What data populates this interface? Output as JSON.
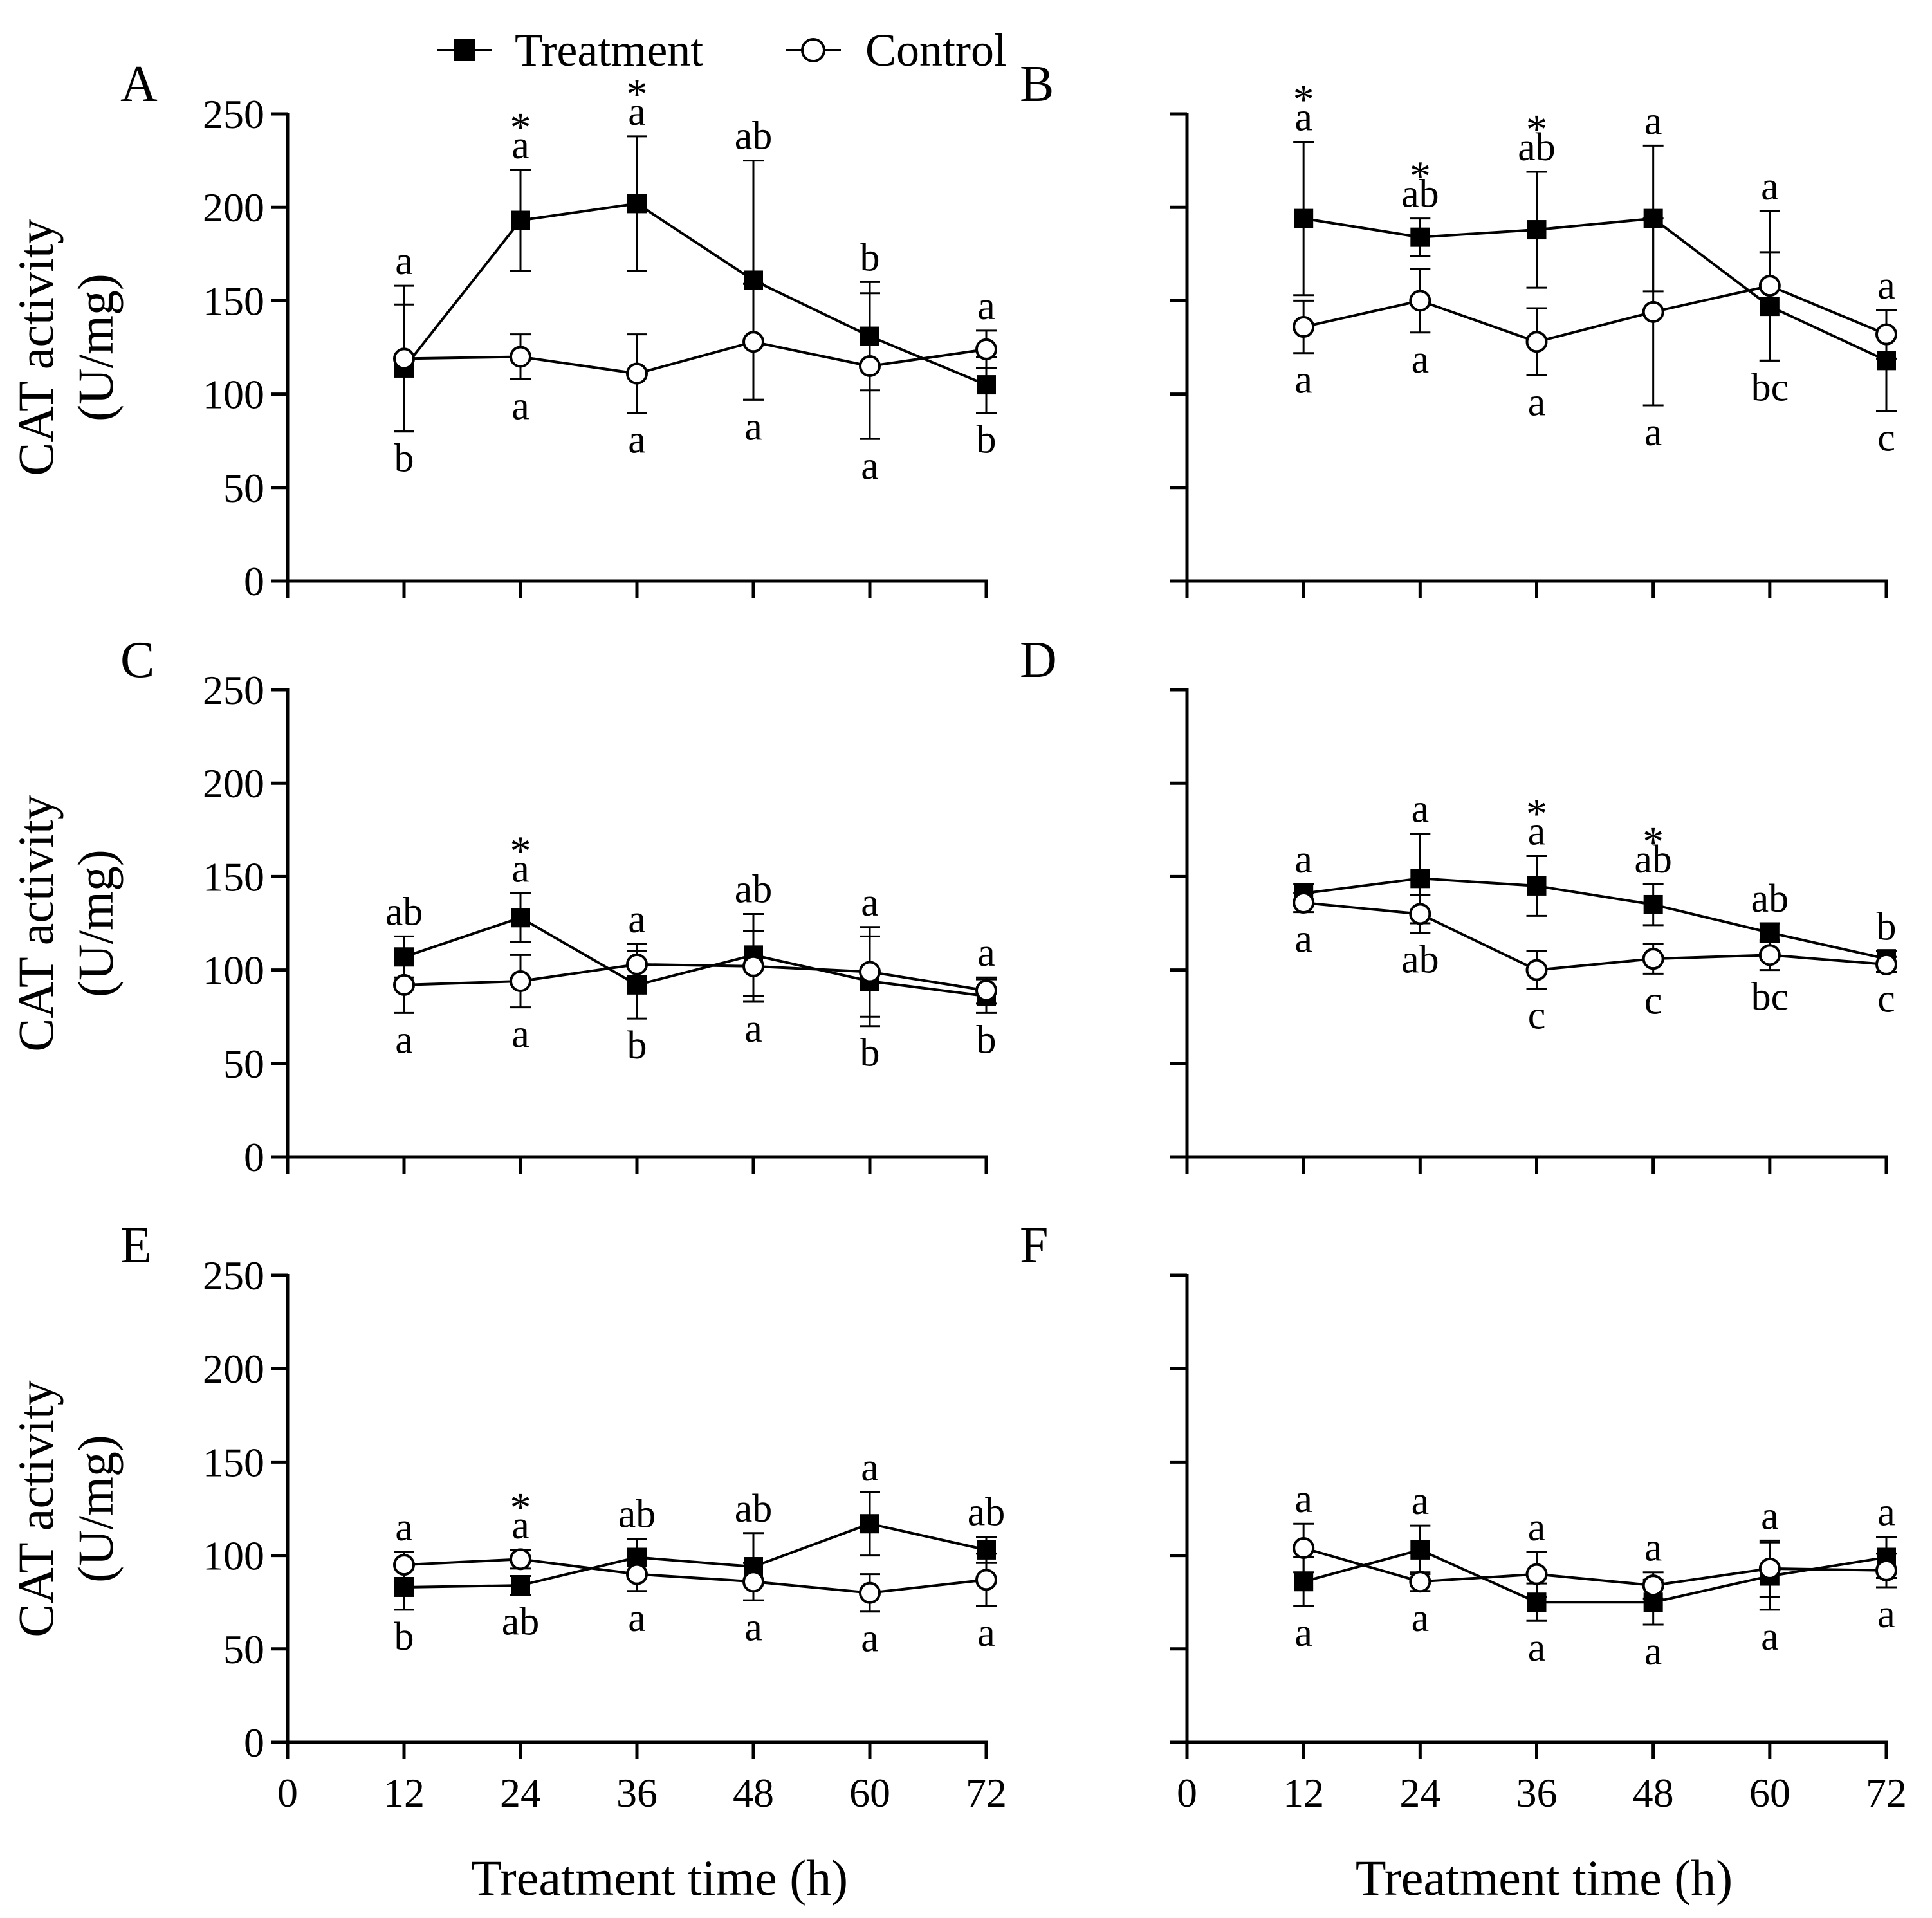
{
  "legend": {
    "treatment_label": "Treatment",
    "control_label": "Control"
  },
  "colors": {
    "ink": "#000000",
    "background": "#ffffff"
  },
  "y_axis_title_line1": "CAT activity",
  "y_axis_title_line2": "(U/mg)",
  "x_axis_title": "Treatment time (h)",
  "chart_data": [
    {
      "panel": "A",
      "type": "line",
      "x": [
        12,
        24,
        36,
        48,
        60,
        72
      ],
      "xticks": [
        0,
        12,
        24,
        36,
        48,
        60,
        72
      ],
      "xlim": [
        0,
        72
      ],
      "yticks": [
        0,
        50,
        100,
        150,
        200,
        250
      ],
      "ylim": [
        0,
        250
      ],
      "show_y_tick_labels": true,
      "show_x_tick_labels": false,
      "series": [
        {
          "name": "Treatment",
          "values": [
            114,
            193,
            202,
            161,
            131,
            105
          ],
          "err": [
            34,
            27,
            36,
            64,
            29,
            15
          ],
          "letters": [
            "b",
            "a",
            "a",
            "ab",
            "b",
            "b"
          ],
          "letter_pos": [
            "below",
            "above",
            "above",
            "above",
            "above",
            "below"
          ],
          "stars": [
            false,
            true,
            true,
            false,
            false,
            false
          ]
        },
        {
          "name": "Control",
          "values": [
            119,
            120,
            111,
            128,
            115,
            124
          ],
          "err": [
            39,
            12,
            21,
            31,
            39,
            10
          ],
          "letters": [
            "a",
            "a",
            "a",
            "a",
            "a",
            "a"
          ],
          "letter_pos": [
            "above",
            "below",
            "below",
            "below",
            "below",
            "above"
          ],
          "stars": [
            false,
            false,
            false,
            false,
            false,
            false
          ]
        }
      ]
    },
    {
      "panel": "B",
      "type": "line",
      "x": [
        12,
        24,
        36,
        48,
        60,
        72
      ],
      "xticks": [
        0,
        12,
        24,
        36,
        48,
        60,
        72
      ],
      "xlim": [
        0,
        72
      ],
      "yticks": [
        0,
        50,
        100,
        150,
        200,
        250
      ],
      "ylim": [
        0,
        250
      ],
      "show_y_tick_labels": false,
      "show_x_tick_labels": false,
      "series": [
        {
          "name": "Treatment",
          "values": [
            194,
            184,
            188,
            194,
            147,
            118
          ],
          "err": [
            41,
            10,
            31,
            39,
            29,
            27
          ],
          "letters": [
            "a",
            "ab",
            "ab",
            "a",
            "bc",
            "c"
          ],
          "letter_pos": [
            "above",
            "above",
            "above",
            "above",
            "below",
            "below"
          ],
          "stars": [
            true,
            true,
            true,
            false,
            false,
            false
          ]
        },
        {
          "name": "Control",
          "values": [
            136,
            150,
            128,
            144,
            158,
            132
          ],
          "err": [
            14,
            17,
            18,
            50,
            40,
            13
          ],
          "letters": [
            "a",
            "a",
            "a",
            "a",
            "a",
            "a"
          ],
          "letter_pos": [
            "below",
            "below",
            "below",
            "below",
            "above",
            "above"
          ],
          "stars": [
            false,
            false,
            false,
            false,
            false,
            false
          ]
        }
      ]
    },
    {
      "panel": "C",
      "type": "line",
      "x": [
        12,
        24,
        36,
        48,
        60,
        72
      ],
      "xticks": [
        0,
        12,
        24,
        36,
        48,
        60,
        72
      ],
      "xlim": [
        0,
        72
      ],
      "yticks": [
        0,
        50,
        100,
        150,
        200,
        250
      ],
      "ylim": [
        0,
        250
      ],
      "show_y_tick_labels": true,
      "show_x_tick_labels": false,
      "series": [
        {
          "name": "Treatment",
          "values": [
            107,
            128,
            92,
            108,
            94,
            86
          ],
          "err": [
            11,
            13,
            18,
            22,
            24,
            9
          ],
          "letters": [
            "ab",
            "a",
            "b",
            "ab",
            "b",
            "b"
          ],
          "letter_pos": [
            "above",
            "above",
            "below",
            "above",
            "below",
            "below"
          ],
          "stars": [
            false,
            true,
            false,
            false,
            false,
            false
          ]
        },
        {
          "name": "Control",
          "values": [
            92,
            94,
            103,
            102,
            99,
            89
          ],
          "err": [
            15,
            14,
            11,
            19,
            24,
            7
          ],
          "letters": [
            "a",
            "a",
            "a",
            "a",
            "a",
            "a"
          ],
          "letter_pos": [
            "below",
            "below",
            "above",
            "below",
            "above",
            "above"
          ],
          "stars": [
            false,
            false,
            false,
            false,
            false,
            false
          ]
        }
      ]
    },
    {
      "panel": "D",
      "type": "line",
      "x": [
        12,
        24,
        36,
        48,
        60,
        72
      ],
      "xticks": [
        0,
        12,
        24,
        36,
        48,
        60,
        72
      ],
      "xlim": [
        0,
        72
      ],
      "yticks": [
        0,
        50,
        100,
        150,
        200,
        250
      ],
      "ylim": [
        0,
        250
      ],
      "show_y_tick_labels": false,
      "show_x_tick_labels": false,
      "series": [
        {
          "name": "Treatment",
          "values": [
            141,
            149,
            145,
            135,
            120,
            106
          ],
          "err": [
            5,
            24,
            16,
            11,
            5,
            4
          ],
          "letters": [
            "a",
            "a",
            "a",
            "ab",
            "ab",
            "b"
          ],
          "letter_pos": [
            "above",
            "above",
            "above",
            "above",
            "above",
            "above"
          ],
          "stars": [
            false,
            false,
            true,
            true,
            false,
            false
          ]
        },
        {
          "name": "Control",
          "values": [
            136,
            130,
            100,
            106,
            108,
            103
          ],
          "err": [
            5,
            10,
            10,
            8,
            8,
            4
          ],
          "letters": [
            "a",
            "ab",
            "c",
            "c",
            "bc",
            "c"
          ],
          "letter_pos": [
            "below",
            "below",
            "below",
            "below",
            "below",
            "below"
          ],
          "stars": [
            false,
            false,
            false,
            false,
            false,
            false
          ]
        }
      ]
    },
    {
      "panel": "E",
      "type": "line",
      "x": [
        12,
        24,
        36,
        48,
        60,
        72
      ],
      "xticks": [
        0,
        12,
        24,
        36,
        48,
        60,
        72
      ],
      "xlim": [
        0,
        72
      ],
      "yticks": [
        0,
        50,
        100,
        150,
        200,
        250
      ],
      "ylim": [
        0,
        250
      ],
      "show_y_tick_labels": true,
      "show_x_tick_labels": true,
      "series": [
        {
          "name": "Treatment",
          "values": [
            83,
            84,
            99,
            94,
            117,
            103
          ],
          "err": [
            12,
            5,
            10,
            18,
            17,
            7
          ],
          "letters": [
            "b",
            "ab",
            "ab",
            "ab",
            "a",
            "ab"
          ],
          "letter_pos": [
            "below",
            "below",
            "above",
            "above",
            "above",
            "above"
          ],
          "stars": [
            false,
            false,
            false,
            false,
            false,
            false
          ]
        },
        {
          "name": "Control",
          "values": [
            95,
            98,
            90,
            86,
            80,
            87
          ],
          "err": [
            7,
            5,
            9,
            10,
            10,
            14
          ],
          "letters": [
            "a",
            "a",
            "a",
            "a",
            "a",
            "a"
          ],
          "letter_pos": [
            "above",
            "above",
            "below",
            "below",
            "below",
            "below"
          ],
          "stars": [
            false,
            true,
            false,
            false,
            false,
            false
          ]
        }
      ]
    },
    {
      "panel": "F",
      "type": "line",
      "x": [
        12,
        24,
        36,
        48,
        60,
        72
      ],
      "xticks": [
        0,
        12,
        24,
        36,
        48,
        60,
        72
      ],
      "xlim": [
        0,
        72
      ],
      "yticks": [
        0,
        50,
        100,
        150,
        200,
        250
      ],
      "ylim": [
        0,
        250
      ],
      "show_y_tick_labels": false,
      "show_x_tick_labels": true,
      "series": [
        {
          "name": "Treatment",
          "values": [
            86,
            103,
            75,
            75,
            89,
            99
          ],
          "err": [
            13,
            13,
            10,
            12,
            18,
            11
          ],
          "letters": [
            "a",
            "a",
            "a",
            "a",
            "a",
            "a"
          ],
          "letter_pos": [
            "below",
            "above",
            "below",
            "below",
            "below",
            "above"
          ],
          "stars": [
            false,
            false,
            false,
            false,
            false,
            false
          ]
        },
        {
          "name": "Control",
          "values": [
            104,
            86,
            90,
            84,
            93,
            92
          ],
          "err": [
            13,
            5,
            12,
            7,
            15,
            9
          ],
          "letters": [
            "a",
            "a",
            "a",
            "a",
            "a",
            "a"
          ],
          "letter_pos": [
            "above",
            "below",
            "above",
            "above",
            "above",
            "below"
          ],
          "stars": [
            false,
            false,
            false,
            false,
            false,
            false
          ]
        }
      ]
    }
  ]
}
